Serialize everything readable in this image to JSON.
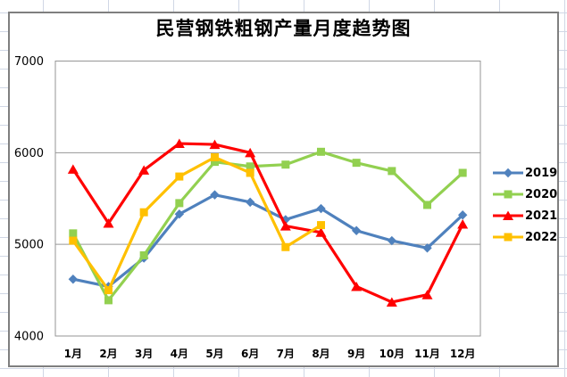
{
  "theme": {
    "page_background": "#FFFFFF",
    "spreadsheet_grid_color": "#D0D7E5",
    "chart_background": "#FFFFFF",
    "chart_border_color": "#7F7F7F",
    "plot_gridline_color": "#969696",
    "label_color": "#000000"
  },
  "chart_data": {
    "type": "line",
    "title": "民营钢铁粗钢产量月度趋势图",
    "categories": [
      "1月",
      "2月",
      "3月",
      "4月",
      "5月",
      "6月",
      "7月",
      "8月",
      "9月",
      "10月",
      "11月",
      "12月"
    ],
    "ylim": [
      4000,
      7000
    ],
    "yticks": [
      4000,
      5000,
      6000,
      7000
    ],
    "grid": "horizontal",
    "legend_position": "right",
    "series": [
      {
        "name": "2019",
        "color": "#4F81BD",
        "marker": "diamond",
        "values": [
          4620,
          4540,
          4850,
          5330,
          5540,
          5460,
          5270,
          5390,
          5150,
          5040,
          4960,
          5320
        ]
      },
      {
        "name": "2020",
        "color": "#92D050",
        "marker": "square",
        "values": [
          5120,
          4390,
          4880,
          5450,
          5900,
          5850,
          5870,
          6010,
          5890,
          5800,
          5430,
          5780
        ]
      },
      {
        "name": "2021",
        "color": "#FF0000",
        "marker": "triangle",
        "values": [
          5820,
          5230,
          5810,
          6100,
          6090,
          6000,
          5200,
          5130,
          4540,
          4370,
          4450,
          5220
        ]
      },
      {
        "name": "2022",
        "color": "#FFC000",
        "marker": "square",
        "values": [
          5040,
          4500,
          5350,
          5740,
          5950,
          5780,
          4970,
          5210
        ]
      }
    ]
  }
}
